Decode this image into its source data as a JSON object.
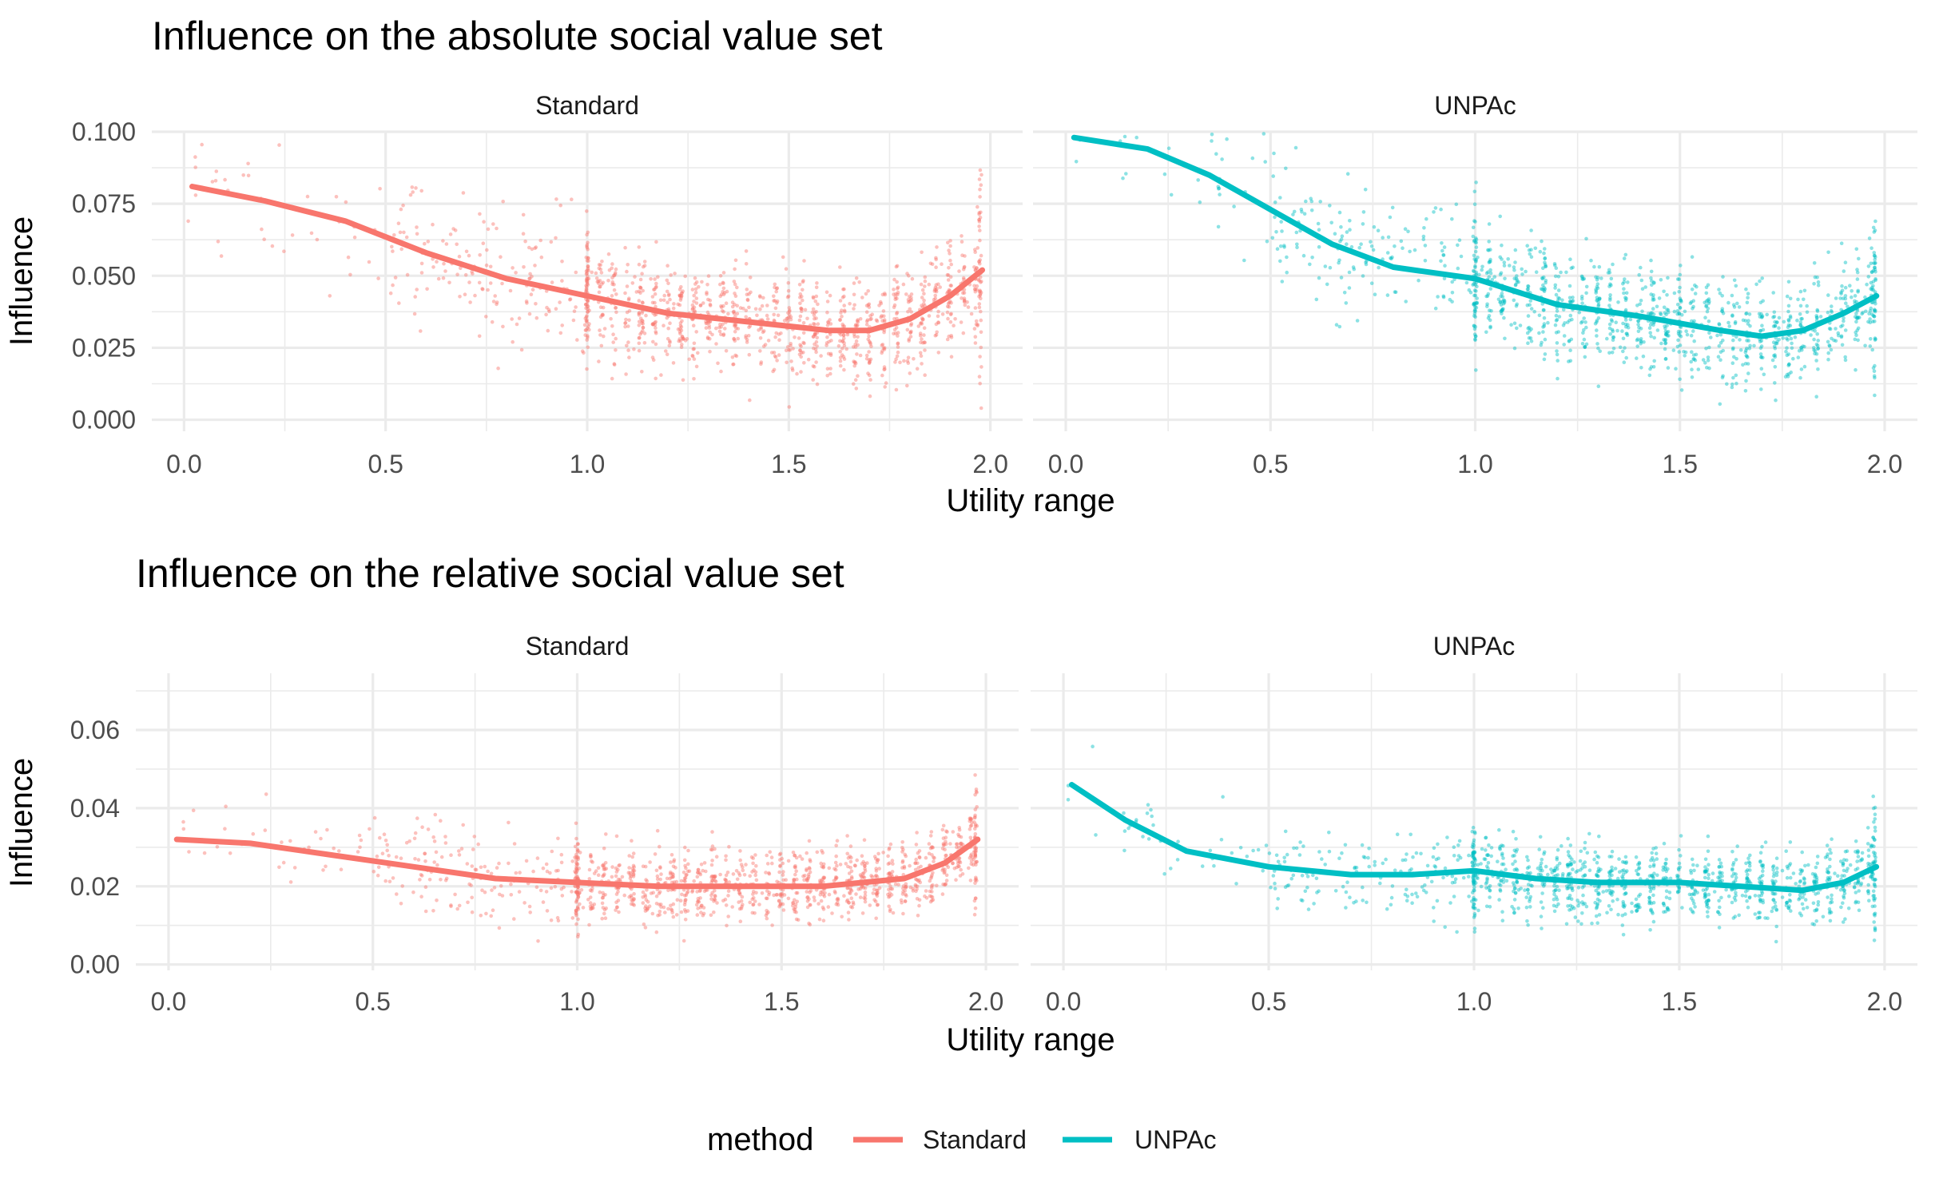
{
  "legend": {
    "title": "method",
    "items": [
      {
        "label": "Standard",
        "color": "#F8766D"
      },
      {
        "label": "UNPAc",
        "color": "#00BFC4"
      }
    ]
  },
  "chart_data": [
    {
      "type": "scatter",
      "title": "Influence on the absolute social value set",
      "xlabel": "Utility range",
      "ylabel": "Influence",
      "xlim": [
        -0.08,
        2.08
      ],
      "ylim": [
        -0.004,
        0.1
      ],
      "x_ticks": [
        "0.0",
        "0.5",
        "1.0",
        "1.5",
        "2.0"
      ],
      "y_ticks": [
        "0.000",
        "0.025",
        "0.050",
        "0.075",
        "0.100"
      ],
      "y_tick_values": [
        0,
        0.025,
        0.05,
        0.075,
        0.1
      ],
      "grid": true,
      "panels": [
        {
          "strip": "Standard",
          "color": "#F8766D",
          "smooth": {
            "x": [
              0.02,
              0.2,
              0.4,
              0.6,
              0.8,
              1.0,
              1.2,
              1.4,
              1.6,
              1.7,
              1.8,
              1.9,
              1.98
            ],
            "y": [
              0.081,
              0.076,
              0.069,
              0.058,
              0.049,
              0.043,
              0.037,
              0.034,
              0.031,
              0.031,
              0.035,
              0.043,
              0.052
            ]
          }
        },
        {
          "strip": "UNPAc",
          "color": "#00BFC4",
          "smooth": {
            "x": [
              0.02,
              0.2,
              0.35,
              0.5,
              0.65,
              0.8,
              1.0,
              1.2,
              1.4,
              1.6,
              1.7,
              1.8,
              1.9,
              1.98
            ],
            "y": [
              0.098,
              0.094,
              0.085,
              0.073,
              0.061,
              0.053,
              0.049,
              0.04,
              0.036,
              0.031,
              0.029,
              0.031,
              0.037,
              0.043
            ]
          }
        }
      ]
    },
    {
      "type": "scatter",
      "title": "Influence on the relative social value set",
      "xlabel": "Utility range",
      "ylabel": "Influence",
      "xlim": [
        -0.08,
        2.08
      ],
      "ylim": [
        -0.0015,
        0.0745
      ],
      "x_ticks": [
        "0.0",
        "0.5",
        "1.0",
        "1.5",
        "2.0"
      ],
      "y_ticks": [
        "0.00",
        "0.02",
        "0.04",
        "0.06"
      ],
      "y_tick_values": [
        0,
        0.02,
        0.04,
        0.06
      ],
      "grid": true,
      "panels": [
        {
          "strip": "Standard",
          "color": "#F8766D",
          "smooth": {
            "x": [
              0.02,
              0.2,
              0.4,
              0.6,
              0.8,
              1.0,
              1.2,
              1.4,
              1.6,
              1.7,
              1.8,
              1.9,
              1.98
            ],
            "y": [
              0.032,
              0.031,
              0.028,
              0.025,
              0.022,
              0.021,
              0.02,
              0.02,
              0.02,
              0.021,
              0.022,
              0.026,
              0.032
            ]
          }
        },
        {
          "strip": "UNPAc",
          "color": "#00BFC4",
          "smooth": {
            "x": [
              0.02,
              0.15,
              0.3,
              0.5,
              0.7,
              0.85,
              1.0,
              1.15,
              1.3,
              1.5,
              1.65,
              1.8,
              1.9,
              1.98
            ],
            "y": [
              0.046,
              0.037,
              0.029,
              0.025,
              0.023,
              0.023,
              0.024,
              0.022,
              0.021,
              0.021,
              0.02,
              0.019,
              0.021,
              0.025
            ]
          }
        }
      ]
    }
  ]
}
